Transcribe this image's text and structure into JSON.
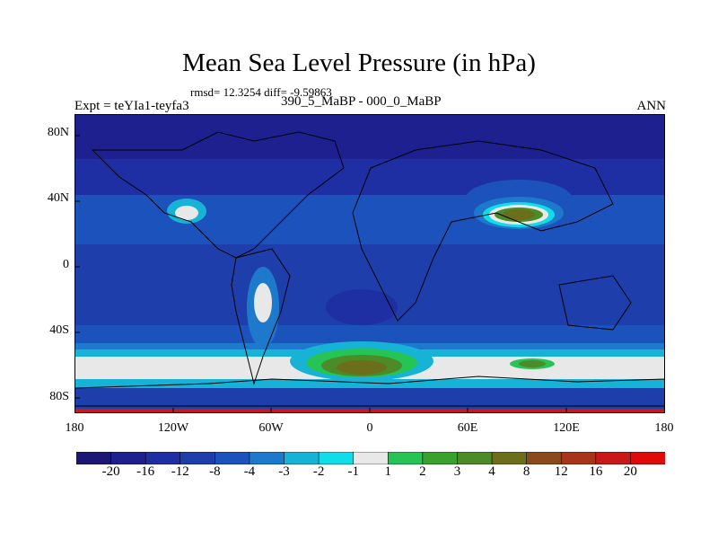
{
  "title": "Mean Sea Level Pressure (in hPa)",
  "stats": "rmsd= 12.3254 diff= -9.59863",
  "diff_label": "390_5_MaBP - 000_0_MaBP",
  "expt": "Expt = teYIa1-teyfa3",
  "season": "ANN",
  "lat_ticks": [
    "80N",
    "40N",
    "0",
    "40S",
    "80S"
  ],
  "lon_ticks": [
    "180",
    "120W",
    "60W",
    "0",
    "60E",
    "120E",
    "180"
  ],
  "colorbar": {
    "labels": [
      "-20",
      "-16",
      "-12",
      "-8",
      "-4",
      "-3",
      "-2",
      "-1",
      "1",
      "2",
      "3",
      "4",
      "8",
      "12",
      "16",
      "20"
    ],
    "colors": [
      "#1c1675",
      "#1e2090",
      "#1d2fa3",
      "#1d3eab",
      "#1c52bb",
      "#1d79cb",
      "#16b3d6",
      "#10dde8",
      "#e8e8e8",
      "#26c454",
      "#3aa02e",
      "#4c8b28",
      "#6b6f1c",
      "#8a4a1a",
      "#a8341a",
      "#c81818",
      "#e00a0a"
    ]
  },
  "palette": {
    "deep": "#1e2090",
    "mid": "#1d3eab",
    "band": "#1c52bb",
    "light": "#1d79cb",
    "cyan": "#16b3d6",
    "aqua": "#10dde8",
    "neutral": "#e8e8e8",
    "green": "#26c454",
    "olive": "#4c8b28",
    "brown": "#6b6f1c",
    "red": "#c81818"
  }
}
